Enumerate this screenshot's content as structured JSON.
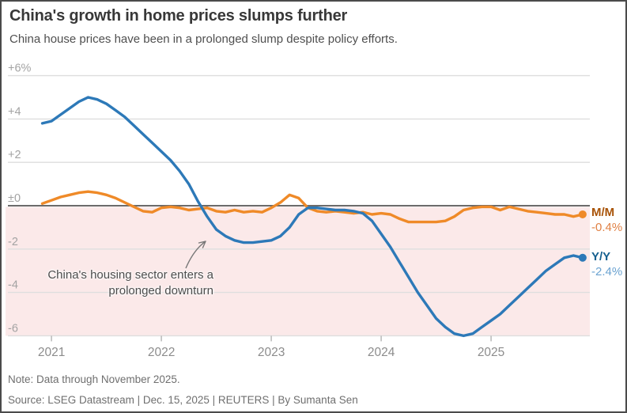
{
  "header": {
    "title": "China's growth in home prices slumps further",
    "subtitle": "China house prices have been in a prolonged slump despite policy efforts."
  },
  "legend": {
    "mm": {
      "label": "M/M",
      "value": "-0.4%"
    },
    "yy": {
      "label": "Y/Y",
      "value": "-2.4%"
    }
  },
  "annotation": {
    "line1": "China's housing sector enters a",
    "line2": "prolonged downturn"
  },
  "footer": {
    "note": "Note: Data through November 2025.",
    "source": "Source: LSEG Datastream | Dec. 15, 2025 | REUTERS | By Sumanta Sen"
  },
  "colors": {
    "orange_line": "#ef8a28",
    "blue_line": "#2d79b8",
    "orange_label_dark": "#a85308",
    "orange_label_light": "#e08145",
    "blue_label_dark": "#15608f",
    "blue_label_light": "#6ba3d1",
    "negative_fill": "#fbe9e9",
    "gridline": "#dedede",
    "zero_line": "#6b6b6b",
    "axis_tick": "#b3b3b3",
    "y_tick_text": "#a3a3a3",
    "x_tick_text": "#8c8c8c",
    "arrow": "#777777"
  },
  "chart_data": {
    "type": "line",
    "title": "China's growth in home prices slumps further",
    "subtitle": "China house prices have been in a prolonged slump despite policy efforts.",
    "unit": "percent change",
    "frequency": "monthly",
    "x_start": "2020-12",
    "x_end": "2025-11",
    "ylim": [
      -6,
      6
    ],
    "grid": true,
    "negative_region_shaded": true,
    "y_ticks": [
      {
        "v": 6,
        "label": "+6%"
      },
      {
        "v": 4,
        "label": "+4"
      },
      {
        "v": 2,
        "label": "+2"
      },
      {
        "v": 0,
        "label": "±0"
      },
      {
        "v": -2,
        "label": "-2"
      },
      {
        "v": -4,
        "label": "-4"
      },
      {
        "v": -6,
        "label": "-6"
      }
    ],
    "x_tick_labels": [
      "2021",
      "2022",
      "2023",
      "2024",
      "2025"
    ],
    "series": [
      {
        "name": "M/M",
        "end_label": "-0.4%",
        "color_key": "orange_line",
        "values": [
          0.1,
          0.25,
          0.4,
          0.5,
          0.6,
          0.65,
          0.6,
          0.5,
          0.35,
          0.15,
          -0.05,
          -0.25,
          -0.3,
          -0.1,
          -0.05,
          -0.1,
          -0.2,
          -0.15,
          -0.1,
          -0.25,
          -0.3,
          -0.2,
          -0.3,
          -0.25,
          -0.3,
          -0.1,
          0.15,
          0.5,
          0.35,
          -0.1,
          -0.25,
          -0.3,
          -0.25,
          -0.3,
          -0.35,
          -0.3,
          -0.4,
          -0.35,
          -0.4,
          -0.6,
          -0.75,
          -0.75,
          -0.75,
          -0.75,
          -0.7,
          -0.5,
          -0.2,
          -0.1,
          -0.05,
          -0.05,
          -0.2,
          -0.05,
          -0.15,
          -0.25,
          -0.3,
          -0.35,
          -0.4,
          -0.4,
          -0.5,
          -0.4
        ]
      },
      {
        "name": "Y/Y",
        "end_label": "-2.4%",
        "color_key": "blue_line",
        "values": [
          3.8,
          3.9,
          4.2,
          4.5,
          4.8,
          5.0,
          4.9,
          4.7,
          4.4,
          4.1,
          3.7,
          3.3,
          2.9,
          2.5,
          2.1,
          1.6,
          1.0,
          0.2,
          -0.5,
          -1.1,
          -1.4,
          -1.6,
          -1.7,
          -1.7,
          -1.65,
          -1.6,
          -1.4,
          -1.0,
          -0.4,
          -0.1,
          -0.1,
          -0.15,
          -0.2,
          -0.2,
          -0.25,
          -0.35,
          -0.7,
          -1.3,
          -1.9,
          -2.6,
          -3.3,
          -4.0,
          -4.6,
          -5.2,
          -5.6,
          -5.9,
          -6.0,
          -5.9,
          -5.6,
          -5.3,
          -5.0,
          -4.6,
          -4.2,
          -3.8,
          -3.4,
          -3.0,
          -2.7,
          -2.4,
          -2.3,
          -2.4
        ]
      }
    ],
    "annotation_text": "China's housing sector enters a prolonged downturn"
  }
}
